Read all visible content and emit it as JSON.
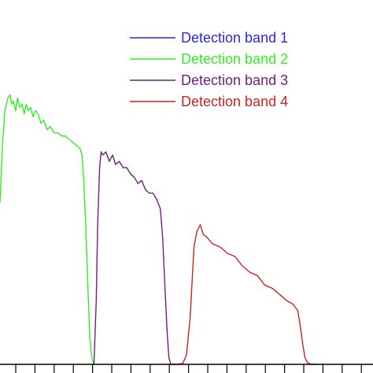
{
  "chart_data": {
    "type": "line",
    "title": "",
    "xlabel": "",
    "ylabel": "",
    "xlim": [
      0,
      100
    ],
    "ylim": [
      0,
      100
    ],
    "grid": false,
    "legend": "top-right",
    "series": [
      {
        "name": "Detection band 1",
        "color": "#2a2ad0",
        "x": [],
        "y": []
      },
      {
        "name": "Detection band 2",
        "color": "#33ee22",
        "x": [
          0.0,
          0.7,
          1.3,
          2.1,
          2.7,
          3.2,
          3.6,
          4.2,
          4.7,
          5.3,
          5.9,
          6.5,
          7.0,
          7.6,
          8.2,
          8.9,
          9.5,
          10.2,
          11.0,
          11.8,
          12.6,
          13.5,
          14.5,
          15.5,
          16.5,
          17.5,
          18.5,
          19.5,
          20.5,
          21.5,
          22.0,
          22.6,
          23.1,
          23.6,
          24.1,
          24.6,
          25.2
        ],
        "y": [
          51,
          70,
          80,
          84,
          85,
          82,
          83,
          80,
          84,
          81,
          82,
          79,
          82,
          80,
          81,
          78,
          80,
          79,
          76,
          77,
          74,
          75,
          73,
          73,
          72,
          72,
          71,
          70,
          69,
          68,
          66,
          55,
          40,
          23,
          8,
          2,
          0
        ]
      },
      {
        "name": "Detection band 3",
        "color": "#701f80",
        "x": [
          25.2,
          25.8,
          26.2,
          26.7,
          27.1,
          27.6,
          28.4,
          29.3,
          30.2,
          31.0,
          32.0,
          33.0,
          34.0,
          35.0,
          36.0,
          37.0,
          38.0,
          39.0,
          40.0,
          41.0,
          42.0,
          43.0,
          43.6,
          44.2,
          44.8,
          45.3,
          45.8
        ],
        "y": [
          0,
          20,
          45,
          62,
          67,
          66,
          67,
          64,
          66,
          63,
          64,
          62,
          62,
          60,
          59,
          57,
          58,
          55,
          54,
          54,
          52,
          49,
          40,
          25,
          10,
          2,
          0
        ]
      },
      {
        "name": "Detection band 4",
        "color": "#cc2222",
        "x": [
          46.0,
          47.5,
          49.0,
          50.0,
          51.0,
          52.0,
          52.8,
          53.7,
          54.5,
          55.5,
          57.0,
          59.0,
          61.0,
          63.0,
          65.0,
          67.0,
          69.0,
          71.0,
          73.0,
          75.0,
          77.0,
          78.5,
          79.8,
          80.5,
          81.2,
          81.8,
          82.5,
          83.5,
          85.0
        ],
        "y": [
          0,
          0,
          0.3,
          3,
          15,
          37,
          42,
          44,
          41,
          40,
          38,
          37,
          35,
          34,
          31,
          29,
          28,
          25,
          24,
          22,
          20,
          19,
          17,
          12,
          6,
          2,
          0.5,
          0,
          0
        ]
      }
    ]
  }
}
